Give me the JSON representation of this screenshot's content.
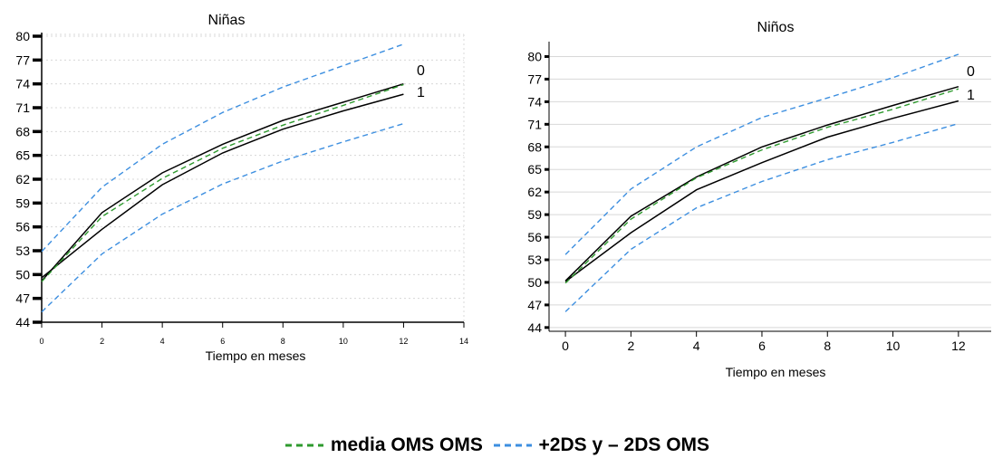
{
  "legend": {
    "mean_label": "media OMS OMS",
    "sd_label": "+2DS y – 2DS OMS",
    "mean_color": "#2e9a2e",
    "sd_color": "#3d8fe0"
  },
  "chart_data": [
    {
      "type": "line",
      "title": "Niñas",
      "xlabel": "Tiempo en meses",
      "ylabel": "",
      "xlim": [
        0,
        14
      ],
      "ylim": [
        44,
        80
      ],
      "x_ticks": [
        0,
        2,
        4,
        6,
        8,
        10,
        12,
        14
      ],
      "y_ticks": [
        44,
        47,
        50,
        53,
        56,
        59,
        62,
        65,
        68,
        71,
        74,
        77,
        80
      ],
      "grid": true,
      "x": [
        0,
        2,
        4,
        6,
        8,
        10,
        12
      ],
      "series": [
        {
          "name": "0",
          "style": "solid",
          "color": "#000000",
          "values": [
            49.2,
            57.8,
            62.8,
            66.4,
            69.4,
            71.7,
            74.0
          ]
        },
        {
          "name": "1",
          "style": "solid",
          "color": "#000000",
          "values": [
            49.6,
            55.7,
            61.3,
            65.3,
            68.3,
            70.6,
            72.7
          ]
        },
        {
          "name": "media OMS",
          "style": "dashed",
          "color": "#2e9a2e",
          "values": [
            49.1,
            57.3,
            62.1,
            65.9,
            68.8,
            71.3,
            73.9
          ]
        },
        {
          "name": "+2DS",
          "style": "dashed",
          "color": "#3d8fe0",
          "values": [
            52.9,
            61.0,
            66.4,
            70.4,
            73.6,
            76.3,
            79.0
          ]
        },
        {
          "name": "-2DS",
          "style": "dashed",
          "color": "#3d8fe0",
          "values": [
            45.3,
            52.6,
            57.6,
            61.4,
            64.3,
            66.7,
            69.0
          ]
        }
      ]
    },
    {
      "type": "line",
      "title": "Niños",
      "xlabel": "Tiempo en meses",
      "ylabel": "",
      "xlim": [
        -0.5,
        13
      ],
      "ylim": [
        43.5,
        81.5
      ],
      "x_ticks": [
        0,
        2,
        4,
        6,
        8,
        10,
        12
      ],
      "y_ticks": [
        44,
        47,
        50,
        53,
        56,
        59,
        62,
        65,
        68,
        71,
        74,
        77,
        80
      ],
      "grid": true,
      "x": [
        0,
        2,
        4,
        6,
        8,
        10,
        12
      ],
      "series": [
        {
          "name": "0",
          "style": "solid",
          "color": "#000000",
          "values": [
            50.2,
            58.8,
            64.0,
            68.0,
            70.9,
            73.5,
            76.0
          ]
        },
        {
          "name": "1",
          "style": "solid",
          "color": "#000000",
          "values": [
            50.1,
            56.6,
            62.3,
            65.9,
            69.3,
            71.8,
            74.1
          ]
        },
        {
          "name": "media OMS",
          "style": "dashed",
          "color": "#2e9a2e",
          "values": [
            49.9,
            58.4,
            63.9,
            67.6,
            70.6,
            73.0,
            75.7
          ]
        },
        {
          "name": "+2DS",
          "style": "dashed",
          "color": "#3d8fe0",
          "values": [
            53.7,
            62.4,
            68.0,
            71.9,
            74.5,
            77.2,
            80.3
          ]
        },
        {
          "name": "-2DS",
          "style": "dashed",
          "color": "#3d8fe0",
          "values": [
            46.1,
            54.4,
            59.9,
            63.4,
            66.3,
            68.6,
            71.1
          ]
        }
      ]
    }
  ]
}
